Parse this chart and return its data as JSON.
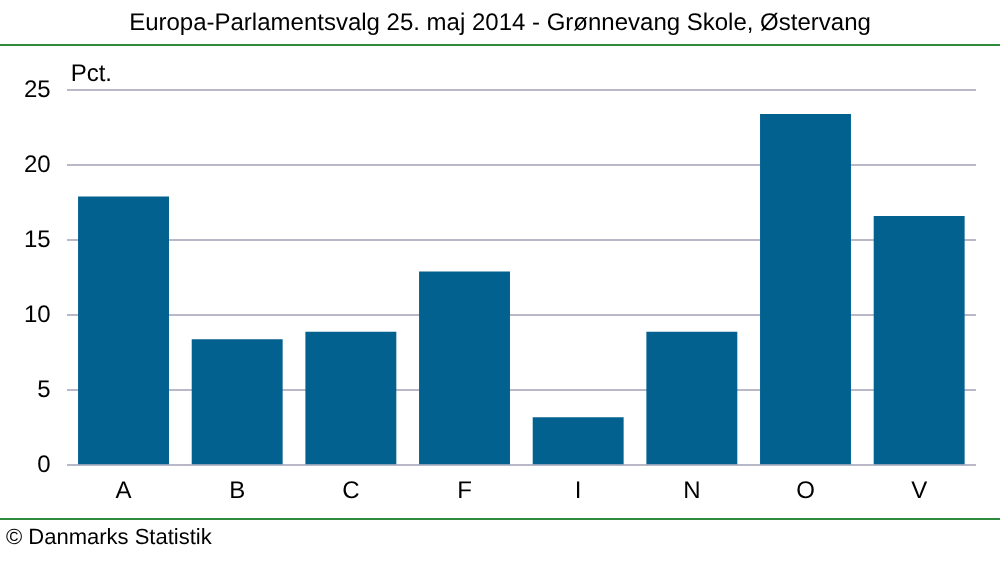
{
  "chart_data": {
    "type": "bar",
    "title": "Europa-Parlamentsvalg 25. maj 2014 - Grønnevang Skole, Østervang",
    "ylabel": "Pct.",
    "categories": [
      "A",
      "B",
      "C",
      "F",
      "I",
      "N",
      "O",
      "V"
    ],
    "values": [
      17.9,
      8.4,
      8.9,
      12.9,
      3.2,
      8.9,
      23.4,
      16.6
    ],
    "color": "#02618f",
    "ylim": [
      0,
      25
    ],
    "yticks": [
      0,
      5,
      10,
      15,
      20,
      25
    ],
    "grid": "y",
    "legend": false,
    "annotations": [
      "© Danmarks Statistik"
    ]
  }
}
